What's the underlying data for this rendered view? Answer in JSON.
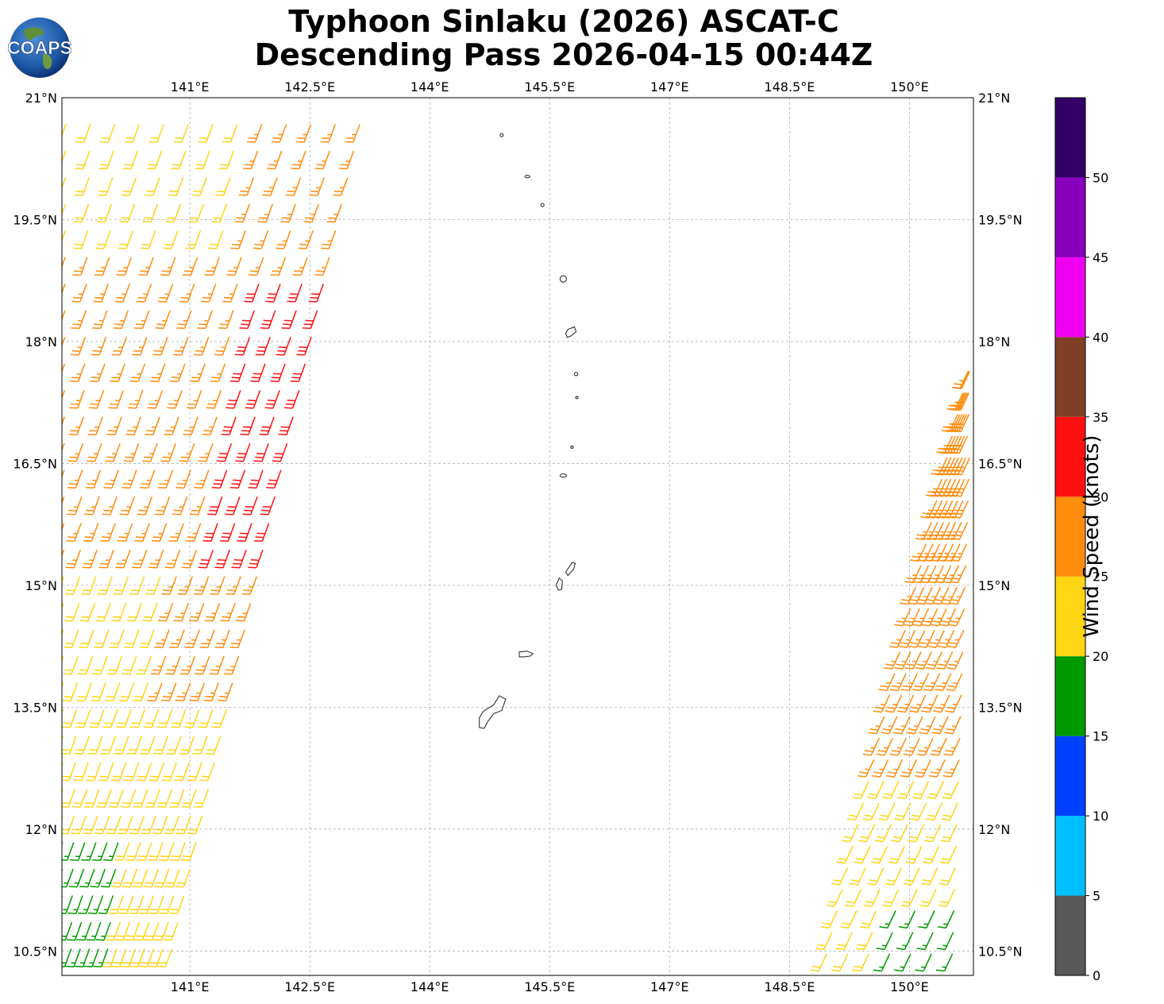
{
  "title": {
    "line1": "Typhoon Sinlaku (2026) ASCAT-C",
    "line2": "Descending Pass 2026-04-15 00:44Z"
  },
  "logo": {
    "text": "COAPS",
    "icon": "globe-icon"
  },
  "map": {
    "lon_range": [
      139.4,
      150.8
    ],
    "lat_range": [
      10.2,
      21.0
    ],
    "lon_ticks": [
      {
        "v": 141.0,
        "label": "141°E"
      },
      {
        "v": 142.5,
        "label": "142.5°E"
      },
      {
        "v": 144.0,
        "label": "144°E"
      },
      {
        "v": 145.5,
        "label": "145.5°E"
      },
      {
        "v": 147.0,
        "label": "147°E"
      },
      {
        "v": 148.5,
        "label": "148.5°E"
      },
      {
        "v": 150.0,
        "label": "150°E"
      }
    ],
    "lat_ticks": [
      {
        "v": 21.0,
        "label": "21°N"
      },
      {
        "v": 19.5,
        "label": "19.5°N"
      },
      {
        "v": 18.0,
        "label": "18°N"
      },
      {
        "v": 16.5,
        "label": "16.5°N"
      },
      {
        "v": 15.0,
        "label": "15°N"
      },
      {
        "v": 13.5,
        "label": "13.5°N"
      },
      {
        "v": 12.0,
        "label": "12°N"
      },
      {
        "v": 10.5,
        "label": "10.5°N"
      }
    ],
    "gridlines": true,
    "islands": [
      {
        "name": "Farallon de Pajaros",
        "lon": 144.9,
        "lat": 20.54,
        "rx": 0.02,
        "ry": 0.02
      },
      {
        "name": "Maug",
        "lon": 145.22,
        "lat": 20.03,
        "rx": 0.03,
        "ry": 0.015
      },
      {
        "name": "Asuncion",
        "lon": 145.41,
        "lat": 19.68,
        "rx": 0.02,
        "ry": 0.02
      },
      {
        "name": "Agrihan",
        "lon": 145.67,
        "lat": 18.77,
        "rx": 0.04,
        "ry": 0.04
      },
      {
        "name": "Alamagan",
        "lon": 145.83,
        "lat": 17.6,
        "rx": 0.02,
        "ry": 0.02
      },
      {
        "name": "Guguan",
        "lon": 145.84,
        "lat": 17.31,
        "rx": 0.01,
        "ry": 0.01
      },
      {
        "name": "Sarigan",
        "lon": 145.78,
        "lat": 16.7,
        "rx": 0.01,
        "ry": 0.01
      },
      {
        "name": "Anatahan",
        "lon": 145.67,
        "lat": 16.35,
        "rx": 0.04,
        "ry": 0.02
      }
    ]
  },
  "wind_swaths": {
    "west": {
      "rows": 34,
      "barbs_per_row": 13,
      "lat_top": 21.0,
      "lat_bottom": 10.2,
      "lon_left_top": 139.45,
      "lon_left_bottom": 139.4,
      "lon_right_top": 143.2,
      "lon_right_bottom": 140.7,
      "wind_dir_deg": 200,
      "speed_knots_by_region": "green <12N, yellow 12-15N, orange/red core 15-19N"
    },
    "east": {
      "rows": 30,
      "barbs_per_row": 8,
      "lat_top": 17.9,
      "lat_bottom": 10.2,
      "lon_left_top": 150.8,
      "lon_left_bottom": 148.9,
      "lon_right_top": 150.8,
      "lon_right_bottom": 150.8,
      "wind_dir_deg": 205
    }
  },
  "colorbar": {
    "label": "Wind Speed (knots)",
    "bounds": [
      0,
      5,
      10,
      15,
      20,
      25,
      30,
      35,
      40,
      45,
      50,
      55
    ],
    "tick_labels": [
      "0",
      "5",
      "10",
      "15",
      "20",
      "25",
      "30",
      "35",
      "40",
      "45",
      "50"
    ],
    "colors": [
      "#595959",
      "#00bfff",
      "#0040ff",
      "#009900",
      "#ffd514",
      "#ff8c0d",
      "#ff1010",
      "#804028",
      "#f000f0",
      "#8800bb",
      "#330066"
    ]
  }
}
